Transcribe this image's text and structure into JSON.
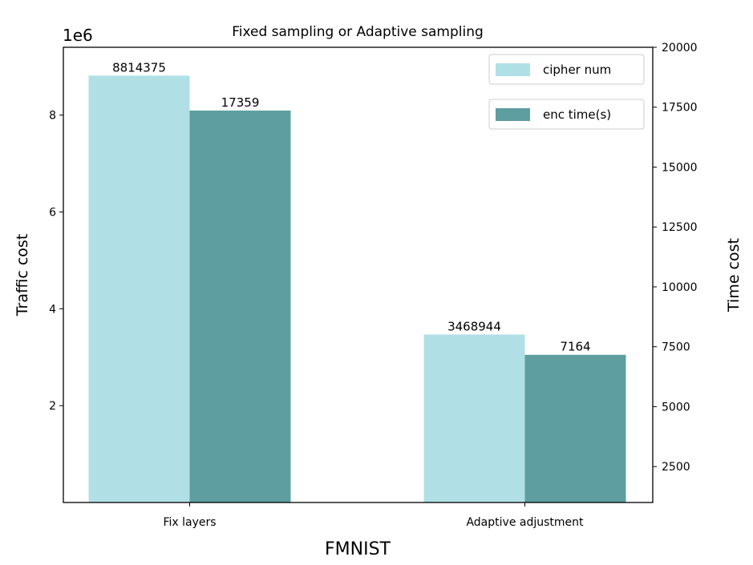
{
  "chart_data": {
    "type": "bar",
    "title": "Fixed sampling or Adaptive sampling",
    "xlabel": "FMNIST",
    "categories": [
      "Fix layers",
      "Adaptive adjustment"
    ],
    "left_axis": {
      "label": "Traffic cost",
      "offset_text": "1e6",
      "ylim": [
        0,
        9400000
      ],
      "ticks": [
        2000000,
        4000000,
        6000000,
        8000000
      ],
      "tick_labels": [
        "2",
        "4",
        "6",
        "8"
      ]
    },
    "right_axis": {
      "label": "Time cost",
      "ylim": [
        1000,
        20000
      ],
      "ticks": [
        2500,
        5000,
        7500,
        10000,
        12500,
        15000,
        17500,
        20000
      ],
      "tick_labels": [
        "2500",
        "5000",
        "7500",
        "10000",
        "12500",
        "15000",
        "17500",
        "20000"
      ]
    },
    "series": [
      {
        "name": "cipher num",
        "axis": "left",
        "color": "#b0e0e6",
        "values": [
          8814375,
          3468944
        ],
        "labels": [
          "8814375",
          "3468944"
        ]
      },
      {
        "name": "enc time(s)",
        "axis": "right",
        "color": "#5f9ea0",
        "values": [
          17359,
          7164
        ],
        "labels": [
          "17359",
          "7164"
        ]
      }
    ],
    "legend": {
      "placement": "top-right"
    },
    "grid": false
  }
}
